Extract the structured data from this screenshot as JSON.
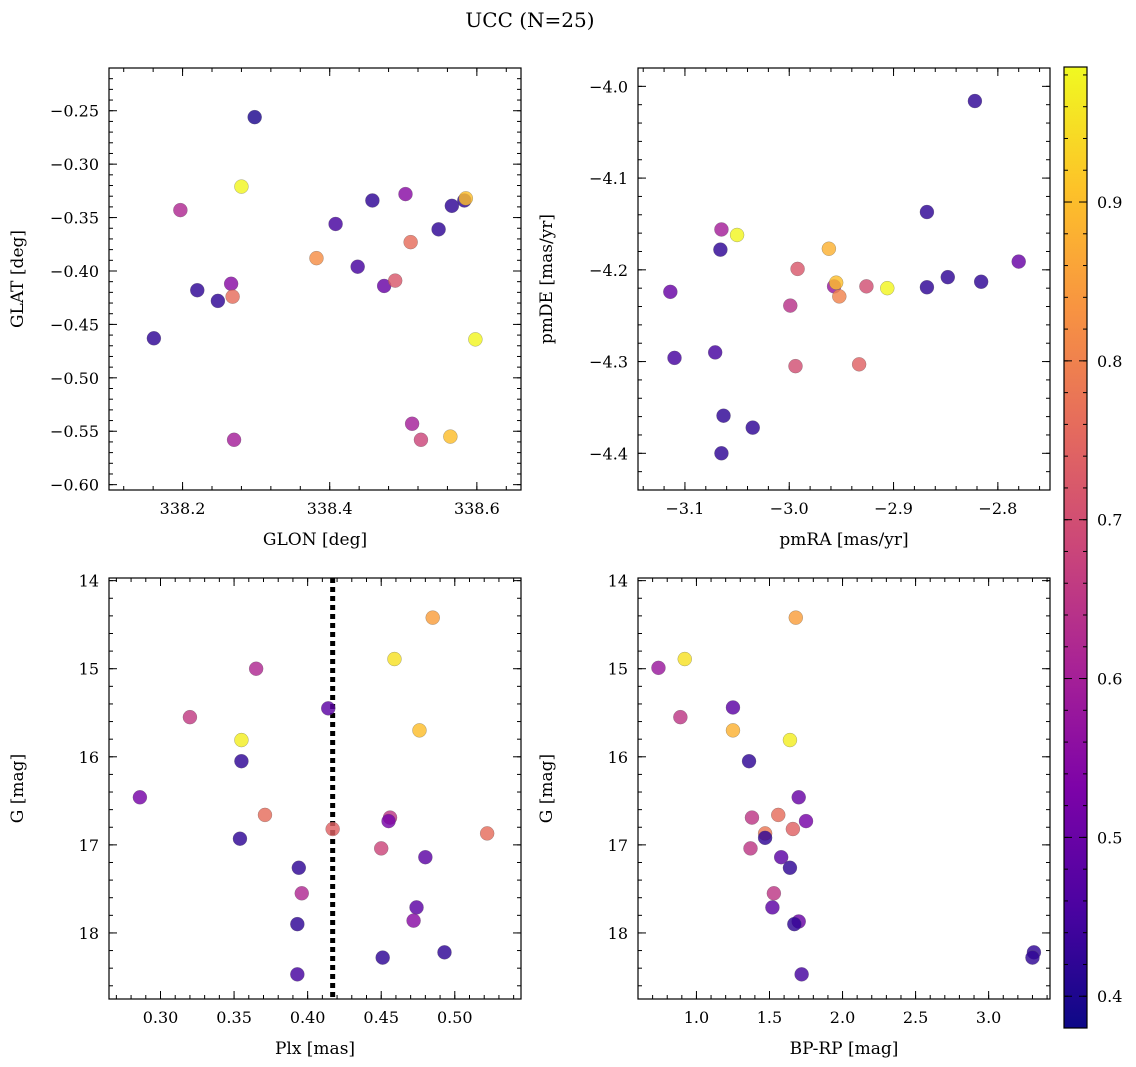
{
  "title": "UCC (N=25)",
  "chart_data": [
    {
      "type": "scatter",
      "xlabel": "GLON [deg]",
      "ylabel": "GLAT [deg]",
      "xlim": [
        338.1,
        338.66
      ],
      "ylim": [
        -0.605,
        -0.21
      ],
      "xticks": [
        338.2,
        338.4,
        338.6
      ],
      "xtick_labels": [
        "338.2",
        "338.4",
        "338.6"
      ],
      "yticks": [
        -0.25,
        -0.3,
        -0.35,
        -0.4,
        -0.45,
        -0.5,
        -0.55,
        -0.6
      ],
      "ytick_labels": [
        "−0.25",
        "−0.30",
        "−0.35",
        "−0.40",
        "−0.45",
        "−0.50",
        "−0.55",
        "−0.60"
      ],
      "points": [
        {
          "x": 338.298,
          "y": -0.256,
          "c": 0.4
        },
        {
          "x": 338.28,
          "y": -0.321,
          "c": 0.98
        },
        {
          "x": 338.197,
          "y": -0.343,
          "c": 0.62
        },
        {
          "x": 338.408,
          "y": -0.356,
          "c": 0.45
        },
        {
          "x": 338.458,
          "y": -0.334,
          "c": 0.42
        },
        {
          "x": 338.503,
          "y": -0.328,
          "c": 0.55
        },
        {
          "x": 338.566,
          "y": -0.339,
          "c": 0.42
        },
        {
          "x": 338.583,
          "y": -0.334,
          "c": 0.42
        },
        {
          "x": 338.585,
          "y": -0.332,
          "c": 0.9
        },
        {
          "x": 338.548,
          "y": -0.361,
          "c": 0.42
        },
        {
          "x": 338.51,
          "y": -0.373,
          "c": 0.76
        },
        {
          "x": 338.382,
          "y": -0.388,
          "c": 0.82
        },
        {
          "x": 338.438,
          "y": -0.396,
          "c": 0.45
        },
        {
          "x": 338.474,
          "y": -0.414,
          "c": 0.5
        },
        {
          "x": 338.489,
          "y": -0.409,
          "c": 0.72
        },
        {
          "x": 338.22,
          "y": -0.418,
          "c": 0.42
        },
        {
          "x": 338.266,
          "y": -0.412,
          "c": 0.55
        },
        {
          "x": 338.268,
          "y": -0.424,
          "c": 0.76
        },
        {
          "x": 338.248,
          "y": -0.428,
          "c": 0.42
        },
        {
          "x": 338.161,
          "y": -0.463,
          "c": 0.42
        },
        {
          "x": 338.598,
          "y": -0.464,
          "c": 0.98
        },
        {
          "x": 338.512,
          "y": -0.543,
          "c": 0.6
        },
        {
          "x": 338.524,
          "y": -0.558,
          "c": 0.68
        },
        {
          "x": 338.564,
          "y": -0.555,
          "c": 0.9
        },
        {
          "x": 338.27,
          "y": -0.558,
          "c": 0.6
        }
      ]
    },
    {
      "type": "scatter",
      "xlabel": "pmRA [mas/yr]",
      "ylabel": "pmDE [mas/yr]",
      "xlim": [
        -3.145,
        -2.75
      ],
      "ylim": [
        -4.44,
        -3.98
      ],
      "xticks": [
        -3.1,
        -3.0,
        -2.9,
        -2.8
      ],
      "xtick_labels": [
        "−3.1",
        "−3.0",
        "−2.9",
        "−2.8"
      ],
      "yticks": [
        -4.0,
        -4.1,
        -4.2,
        -4.3,
        -4.4
      ],
      "ytick_labels": [
        "−4.0",
        "−4.1",
        "−4.2",
        "−4.3",
        "−4.4"
      ],
      "points": [
        {
          "x": -2.822,
          "y": -4.016,
          "c": 0.42
        },
        {
          "x": -2.868,
          "y": -4.137,
          "c": 0.42
        },
        {
          "x": -3.065,
          "y": -4.156,
          "c": 0.6
        },
        {
          "x": -3.05,
          "y": -4.162,
          "c": 0.98
        },
        {
          "x": -3.066,
          "y": -4.178,
          "c": 0.42
        },
        {
          "x": -2.962,
          "y": -4.177,
          "c": 0.88
        },
        {
          "x": -2.992,
          "y": -4.199,
          "c": 0.72
        },
        {
          "x": -2.957,
          "y": -4.218,
          "c": 0.58
        },
        {
          "x": -2.955,
          "y": -4.214,
          "c": 0.9
        },
        {
          "x": -2.952,
          "y": -4.229,
          "c": 0.8
        },
        {
          "x": -2.926,
          "y": -4.218,
          "c": 0.7
        },
        {
          "x": -2.906,
          "y": -4.22,
          "c": 0.98
        },
        {
          "x": -2.868,
          "y": -4.219,
          "c": 0.42
        },
        {
          "x": -2.848,
          "y": -4.208,
          "c": 0.42
        },
        {
          "x": -2.816,
          "y": -4.213,
          "c": 0.42
        },
        {
          "x": -2.78,
          "y": -4.191,
          "c": 0.5
        },
        {
          "x": -3.114,
          "y": -4.224,
          "c": 0.5
        },
        {
          "x": -2.999,
          "y": -4.239,
          "c": 0.64
        },
        {
          "x": -3.11,
          "y": -4.296,
          "c": 0.45
        },
        {
          "x": -3.071,
          "y": -4.29,
          "c": 0.45
        },
        {
          "x": -2.994,
          "y": -4.305,
          "c": 0.7
        },
        {
          "x": -2.933,
          "y": -4.303,
          "c": 0.74
        },
        {
          "x": -3.063,
          "y": -4.359,
          "c": 0.42
        },
        {
          "x": -3.035,
          "y": -4.372,
          "c": 0.42
        },
        {
          "x": -3.065,
          "y": -4.4,
          "c": 0.42
        }
      ]
    },
    {
      "type": "scatter",
      "xlabel": "Plx [mas]",
      "ylabel": "G [mag]",
      "xlim": [
        0.265,
        0.545
      ],
      "ylim": [
        18.75,
        13.97
      ],
      "xticks": [
        0.3,
        0.35,
        0.4,
        0.45,
        0.5
      ],
      "xtick_labels": [
        "0.30",
        "0.35",
        "0.40",
        "0.45",
        "0.50"
      ],
      "yticks": [
        14,
        15,
        16,
        17,
        18
      ],
      "ytick_labels": [
        "14",
        "15",
        "16",
        "17",
        "18"
      ],
      "vline": 0.417,
      "points": [
        {
          "x": 0.485,
          "y": 14.42,
          "c": 0.85
        },
        {
          "x": 0.459,
          "y": 14.89,
          "c": 0.95
        },
        {
          "x": 0.365,
          "y": 15.0,
          "c": 0.62
        },
        {
          "x": 0.414,
          "y": 15.45,
          "c": 0.48
        },
        {
          "x": 0.32,
          "y": 15.55,
          "c": 0.66
        },
        {
          "x": 0.476,
          "y": 15.7,
          "c": 0.9
        },
        {
          "x": 0.355,
          "y": 15.81,
          "c": 0.97
        },
        {
          "x": 0.355,
          "y": 16.05,
          "c": 0.42
        },
        {
          "x": 0.286,
          "y": 16.46,
          "c": 0.52
        },
        {
          "x": 0.371,
          "y": 16.66,
          "c": 0.76
        },
        {
          "x": 0.456,
          "y": 16.69,
          "c": 0.65
        },
        {
          "x": 0.455,
          "y": 16.73,
          "c": 0.52
        },
        {
          "x": 0.417,
          "y": 16.82,
          "c": 0.74
        },
        {
          "x": 0.522,
          "y": 16.87,
          "c": 0.76
        },
        {
          "x": 0.354,
          "y": 16.93,
          "c": 0.42
        },
        {
          "x": 0.45,
          "y": 17.04,
          "c": 0.68
        },
        {
          "x": 0.48,
          "y": 17.14,
          "c": 0.48
        },
        {
          "x": 0.394,
          "y": 17.26,
          "c": 0.42
        },
        {
          "x": 0.396,
          "y": 17.55,
          "c": 0.62
        },
        {
          "x": 0.474,
          "y": 17.71,
          "c": 0.48
        },
        {
          "x": 0.472,
          "y": 17.86,
          "c": 0.55
        },
        {
          "x": 0.393,
          "y": 17.9,
          "c": 0.42
        },
        {
          "x": 0.493,
          "y": 18.22,
          "c": 0.42
        },
        {
          "x": 0.451,
          "y": 18.28,
          "c": 0.42
        },
        {
          "x": 0.393,
          "y": 18.47,
          "c": 0.45
        }
      ]
    },
    {
      "type": "scatter",
      "xlabel": "BP-RP [mag]",
      "ylabel": "G [mag]",
      "xlim": [
        0.6,
        3.42
      ],
      "ylim": [
        18.75,
        13.97
      ],
      "xticks": [
        1.0,
        1.5,
        2.0,
        2.5,
        3.0
      ],
      "xtick_labels": [
        "1.0",
        "1.5",
        "2.0",
        "2.5",
        "3.0"
      ],
      "yticks": [
        14,
        15,
        16,
        17,
        18
      ],
      "ytick_labels": [
        "14",
        "15",
        "16",
        "17",
        "18"
      ],
      "points": [
        {
          "x": 1.68,
          "y": 14.42,
          "c": 0.85
        },
        {
          "x": 0.92,
          "y": 14.89,
          "c": 0.95
        },
        {
          "x": 0.74,
          "y": 14.99,
          "c": 0.58
        },
        {
          "x": 1.25,
          "y": 15.44,
          "c": 0.48
        },
        {
          "x": 0.89,
          "y": 15.55,
          "c": 0.65
        },
        {
          "x": 1.25,
          "y": 15.7,
          "c": 0.88
        },
        {
          "x": 1.64,
          "y": 15.81,
          "c": 0.97
        },
        {
          "x": 1.36,
          "y": 16.05,
          "c": 0.42
        },
        {
          "x": 1.7,
          "y": 16.46,
          "c": 0.5
        },
        {
          "x": 1.38,
          "y": 16.69,
          "c": 0.65
        },
        {
          "x": 1.56,
          "y": 16.66,
          "c": 0.76
        },
        {
          "x": 1.75,
          "y": 16.73,
          "c": 0.52
        },
        {
          "x": 1.47,
          "y": 16.87,
          "c": 0.78
        },
        {
          "x": 1.66,
          "y": 16.82,
          "c": 0.74
        },
        {
          "x": 1.47,
          "y": 16.92,
          "c": 0.42
        },
        {
          "x": 1.37,
          "y": 17.04,
          "c": 0.65
        },
        {
          "x": 1.58,
          "y": 17.14,
          "c": 0.48
        },
        {
          "x": 1.64,
          "y": 17.26,
          "c": 0.42
        },
        {
          "x": 1.53,
          "y": 17.55,
          "c": 0.65
        },
        {
          "x": 1.52,
          "y": 17.71,
          "c": 0.48
        },
        {
          "x": 1.7,
          "y": 17.87,
          "c": 0.5
        },
        {
          "x": 1.67,
          "y": 17.9,
          "c": 0.42
        },
        {
          "x": 3.31,
          "y": 18.22,
          "c": 0.42
        },
        {
          "x": 3.3,
          "y": 18.28,
          "c": 0.42
        },
        {
          "x": 1.72,
          "y": 18.47,
          "c": 0.45
        }
      ]
    }
  ],
  "colorbar": {
    "colormap": "plasma",
    "range": [
      0.38,
      0.985
    ],
    "ticks": [
      0.4,
      0.5,
      0.6,
      0.7,
      0.8,
      0.9
    ],
    "tick_labels": [
      "0.4",
      "0.5",
      "0.6",
      "0.7",
      "0.8",
      "0.9"
    ]
  }
}
